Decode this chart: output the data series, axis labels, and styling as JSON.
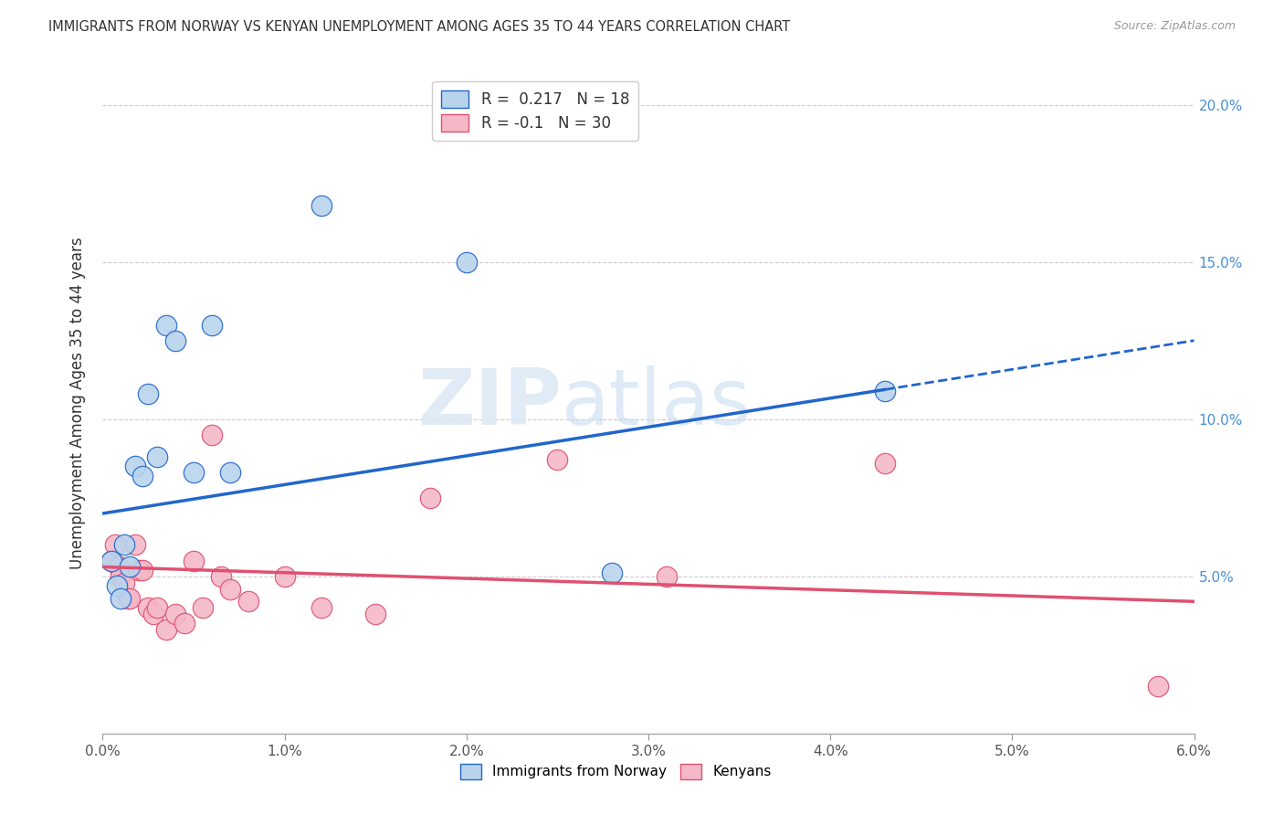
{
  "title": "IMMIGRANTS FROM NORWAY VS KENYAN UNEMPLOYMENT AMONG AGES 35 TO 44 YEARS CORRELATION CHART",
  "source": "Source: ZipAtlas.com",
  "ylabel": "Unemployment Among Ages 35 to 44 years",
  "right_yticks": [
    0.05,
    0.1,
    0.15,
    0.2
  ],
  "right_yticklabels": [
    "5.0%",
    "10.0%",
    "15.0%",
    "20.0%"
  ],
  "xmin": 0.0,
  "xmax": 0.06,
  "ymin": 0.0,
  "ymax": 0.21,
  "norway_R": 0.217,
  "norway_N": 18,
  "kenya_R": -0.1,
  "kenya_N": 30,
  "norway_color": "#b8d4ed",
  "kenya_color": "#f4b8c8",
  "norway_line_color": "#2266cc",
  "kenya_line_color": "#e05070",
  "watermark_zip": "ZIP",
  "watermark_atlas": "atlas",
  "norway_x": [
    0.0005,
    0.0008,
    0.001,
    0.0012,
    0.0015,
    0.0018,
    0.0022,
    0.0025,
    0.003,
    0.0035,
    0.004,
    0.005,
    0.006,
    0.007,
    0.012,
    0.02,
    0.028,
    0.043
  ],
  "norway_y": [
    0.055,
    0.047,
    0.043,
    0.06,
    0.053,
    0.085,
    0.082,
    0.108,
    0.088,
    0.13,
    0.125,
    0.083,
    0.13,
    0.083,
    0.168,
    0.15,
    0.051,
    0.109
  ],
  "kenya_x": [
    0.0005,
    0.0007,
    0.0009,
    0.001,
    0.0012,
    0.0014,
    0.0015,
    0.0018,
    0.002,
    0.0022,
    0.0025,
    0.0028,
    0.003,
    0.0035,
    0.004,
    0.0045,
    0.005,
    0.0055,
    0.006,
    0.0065,
    0.007,
    0.008,
    0.01,
    0.012,
    0.015,
    0.018,
    0.025,
    0.031,
    0.043,
    0.058
  ],
  "kenya_y": [
    0.055,
    0.06,
    0.053,
    0.05,
    0.048,
    0.043,
    0.043,
    0.06,
    0.052,
    0.052,
    0.04,
    0.038,
    0.04,
    0.033,
    0.038,
    0.035,
    0.055,
    0.04,
    0.095,
    0.05,
    0.046,
    0.042,
    0.05,
    0.04,
    0.038,
    0.075,
    0.087,
    0.05,
    0.086,
    0.015
  ],
  "norway_trend_x0": 0.0,
  "norway_trend_x_solid_end": 0.043,
  "norway_trend_x1": 0.06,
  "norway_trend_y0": 0.07,
  "norway_trend_y1": 0.125,
  "kenya_trend_x0": 0.0,
  "kenya_trend_x1": 0.06,
  "kenya_trend_y0": 0.053,
  "kenya_trend_y1": 0.042
}
